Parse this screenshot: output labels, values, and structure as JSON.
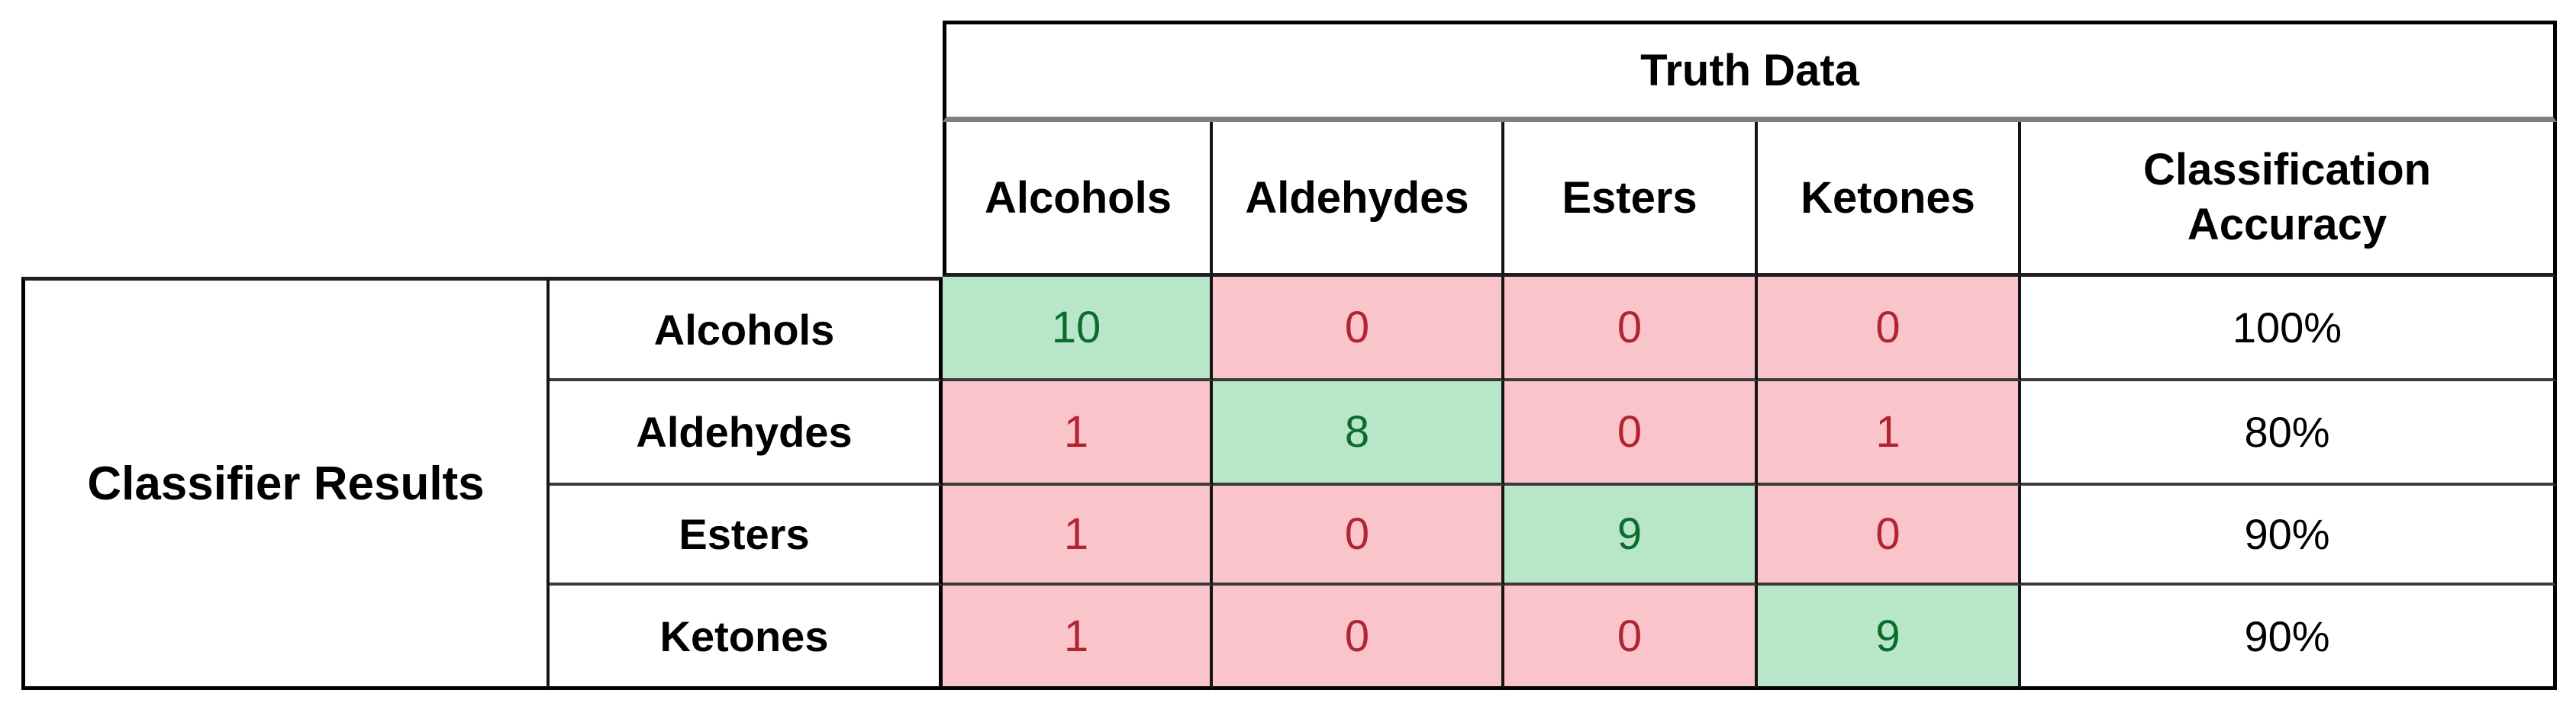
{
  "table": {
    "truth_header": "Truth Data",
    "classifier_header": "Classifier Results",
    "accuracy_header": "Classification Accuracy",
    "truth_classes": [
      "Alcohols",
      "Aldehydes",
      "Esters",
      "Ketones"
    ],
    "rows": [
      {
        "label": "Alcohols",
        "values": [
          10,
          0,
          0,
          0
        ],
        "accuracy": "100%"
      },
      {
        "label": "Aldehydes",
        "values": [
          1,
          8,
          0,
          1
        ],
        "accuracy": "80%"
      },
      {
        "label": "Esters",
        "values": [
          1,
          0,
          9,
          0
        ],
        "accuracy": "90%"
      },
      {
        "label": "Ketones",
        "values": [
          1,
          0,
          0,
          9
        ],
        "accuracy": "90%"
      }
    ]
  },
  "colors": {
    "correct_cell_bg": "#b7e6c8",
    "correct_cell_text": "#0e6b2e",
    "incorrect_cell_bg": "#f9c4ca",
    "incorrect_cell_text": "#b02531",
    "truth_divider_gray": "#7f7f7f",
    "border_black": "#000000"
  },
  "chart_data": {
    "type": "table",
    "subtype": "confusion-matrix",
    "col_axis_label": "Truth Data",
    "row_axis_label": "Classifier Results",
    "categories": [
      "Alcohols",
      "Aldehydes",
      "Esters",
      "Ketones"
    ],
    "matrix": [
      [
        10,
        0,
        0,
        0
      ],
      [
        1,
        8,
        0,
        1
      ],
      [
        1,
        0,
        9,
        0
      ],
      [
        1,
        0,
        0,
        9
      ]
    ],
    "classification_accuracy_column_header": "Classification Accuracy",
    "classification_accuracy": [
      "100%",
      "80%",
      "90%",
      "90%"
    ],
    "layout_hints": {
      "diagonal_cells": "green (correct classifications)",
      "off_diagonal_cells": "pink (misclassifications)",
      "accuracy_cells": "white background, black text"
    }
  }
}
